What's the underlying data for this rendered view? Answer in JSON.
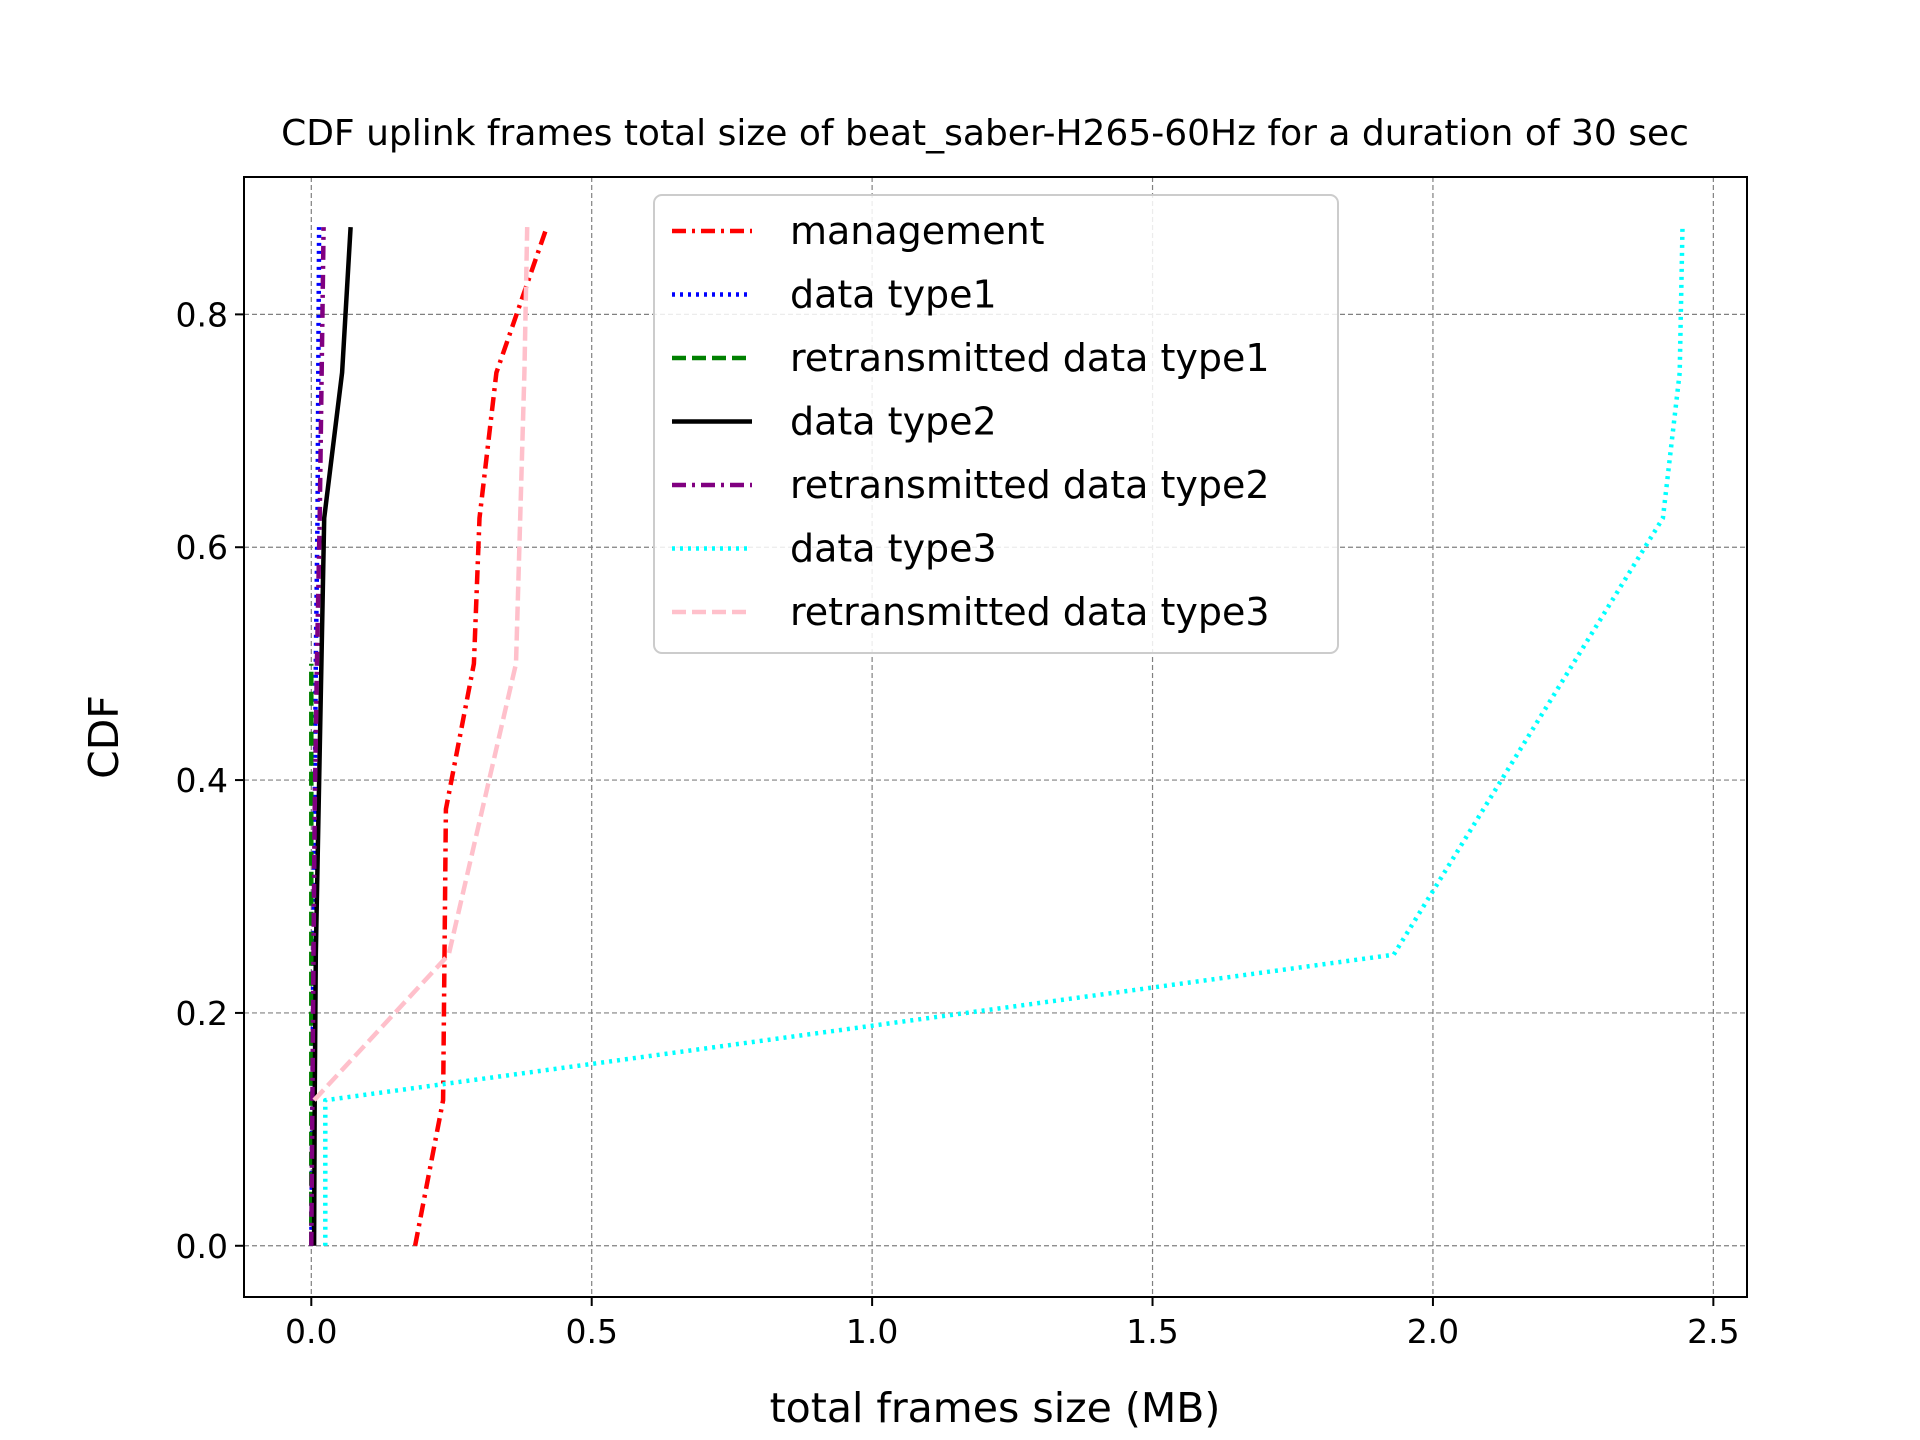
{
  "chart_data": {
    "type": "line",
    "title": "CDF uplink frames total size of beat_saber-H265-60Hz for a duration of 30 sec",
    "xlabel": "total frames size (MB)",
    "ylabel": "CDF",
    "xlim": [
      -0.12,
      2.56
    ],
    "ylim": [
      -0.044,
      0.918
    ],
    "xticks": [
      0.0,
      0.5,
      1.0,
      1.5,
      2.0,
      2.5
    ],
    "xtick_labels": [
      "0.0",
      "0.5",
      "1.0",
      "1.5",
      "2.0",
      "2.5"
    ],
    "yticks": [
      0.0,
      0.2,
      0.4,
      0.6,
      0.8
    ],
    "ytick_labels": [
      "0.0",
      "0.2",
      "0.4",
      "0.6",
      "0.8"
    ],
    "grid": true,
    "legend_position": "top-center",
    "series": [
      {
        "name": "management",
        "color": "#ff0000",
        "dash": "dashdot",
        "x": [
          0.185,
          0.235,
          0.24,
          0.29,
          0.3,
          0.33,
          0.42
        ],
        "y": [
          0.0,
          0.125,
          0.375,
          0.5,
          0.625,
          0.75,
          0.875
        ]
      },
      {
        "name": "data type1",
        "color": "#0000ff",
        "dash": "dotted",
        "x": [
          0.0,
          0.002,
          0.004,
          0.006,
          0.008,
          0.011,
          0.014
        ],
        "y": [
          0.0,
          0.125,
          0.25,
          0.375,
          0.5,
          0.625,
          0.875
        ]
      },
      {
        "name": "retransmitted data type1",
        "color": "#008000",
        "dash": "dashed",
        "x": [
          0.0,
          0.0,
          0.0,
          0.0,
          0.0,
          0.0
        ],
        "y": [
          0.0,
          0.125,
          0.25,
          0.375,
          0.5,
          0.5
        ]
      },
      {
        "name": "data type2",
        "color": "#000000",
        "dash": "solid",
        "x": [
          0.005,
          0.006,
          0.008,
          0.018,
          0.023,
          0.055,
          0.07
        ],
        "y": [
          0.0,
          0.125,
          0.25,
          0.5,
          0.625,
          0.75,
          0.875
        ]
      },
      {
        "name": "retransmitted data type2",
        "color": "#800080",
        "dash": "dashdot",
        "x": [
          0.0,
          0.002,
          0.004,
          0.006,
          0.01,
          0.015,
          0.022
        ],
        "y": [
          0.0,
          0.125,
          0.25,
          0.375,
          0.5,
          0.625,
          0.875
        ]
      },
      {
        "name": "data type3",
        "color": "#00ffff",
        "dash": "dotted",
        "x": [
          0.025,
          0.025,
          1.93,
          2.41,
          2.44,
          2.445
        ],
        "y": [
          0.0,
          0.125,
          0.25,
          0.625,
          0.75,
          0.875
        ]
      },
      {
        "name": "retransmitted data type3",
        "color": "#ffc0cb",
        "dash": "dashed",
        "x": [
          0.005,
          0.245,
          0.365,
          0.38,
          0.385
        ],
        "y": [
          0.125,
          0.25,
          0.5,
          0.75,
          0.875
        ]
      }
    ]
  }
}
